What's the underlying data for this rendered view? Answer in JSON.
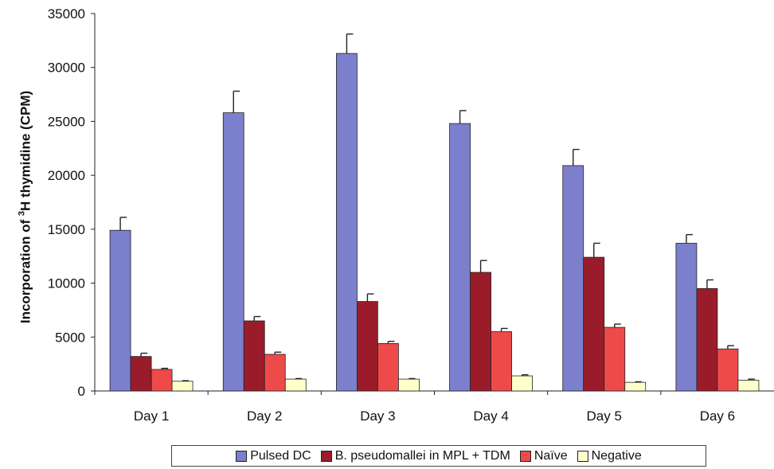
{
  "chart_data": {
    "type": "bar",
    "title": "",
    "xlabel": "",
    "ylabel": {
      "prefix": "Incorporation of ",
      "superscript": "3",
      "suffix": "H thymidine (CPM)"
    },
    "ylim": [
      0,
      35000
    ],
    "yticks": [
      "0",
      "5000",
      "10000",
      "15000",
      "20000",
      "25000",
      "30000",
      "35000"
    ],
    "categories": [
      "Day 1",
      "Day 2",
      "Day 3",
      "Day 4",
      "Day 5",
      "Day 6"
    ],
    "error_bars": true,
    "series": [
      {
        "name": "Pulsed DC",
        "color": "#7B7FCC",
        "values": [
          14900,
          25800,
          31300,
          24800,
          20900,
          13700
        ],
        "errors": [
          1200,
          2000,
          1800,
          1200,
          1500,
          800
        ]
      },
      {
        "name": "B. pseudomallei in MPL + TDM",
        "color": "#9A1C2A",
        "values": [
          3200,
          6500,
          8300,
          11000,
          12400,
          9500
        ],
        "errors": [
          300,
          400,
          700,
          1100,
          1300,
          800
        ]
      },
      {
        "name": "Naïve",
        "color": "#EE4A4A",
        "values": [
          2000,
          3400,
          4400,
          5500,
          5900,
          3900
        ],
        "errors": [
          100,
          200,
          200,
          300,
          300,
          300
        ]
      },
      {
        "name": "Negative",
        "color": "#FFFFCC",
        "values": [
          900,
          1100,
          1100,
          1400,
          800,
          1000
        ],
        "errors": [
          50,
          50,
          50,
          100,
          50,
          100
        ]
      }
    ]
  }
}
